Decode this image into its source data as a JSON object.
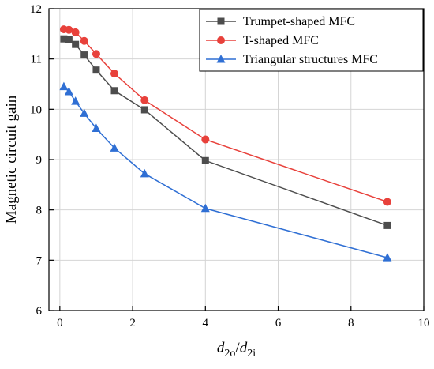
{
  "chart_data": {
    "type": "line",
    "xlabel": {
      "base": "d",
      "sub1": "2o",
      "sep": "/",
      "base2": "d",
      "sub2": "2i"
    },
    "ylabel": "Magnetic circuit gain",
    "xlim": [
      -0.3,
      10
    ],
    "ylim": [
      6,
      12
    ],
    "xticks": [
      0,
      2,
      4,
      6,
      8,
      10
    ],
    "yticks": [
      6,
      7,
      8,
      9,
      10,
      11,
      12
    ],
    "grid": true,
    "legend_position": "top-right",
    "series": [
      {
        "name": "Trumpet-shaped MFC",
        "color": "#4d4d4d",
        "marker": "square",
        "x": [
          0.11,
          0.25,
          0.43,
          0.67,
          1.0,
          1.5,
          2.33,
          4.0,
          9.0
        ],
        "y": [
          11.4,
          11.39,
          11.29,
          11.08,
          10.78,
          10.37,
          9.99,
          8.98,
          7.69
        ]
      },
      {
        "name": "T-shaped MFC",
        "color": "#e8413b",
        "marker": "circle",
        "x": [
          0.11,
          0.25,
          0.43,
          0.67,
          1.0,
          1.5,
          2.33,
          4.0,
          9.0
        ],
        "y": [
          11.59,
          11.58,
          11.53,
          11.36,
          11.1,
          10.71,
          10.18,
          9.4,
          8.16
        ]
      },
      {
        "name": "Triangular structures MFC",
        "color": "#2f6fd4",
        "marker": "triangle",
        "x": [
          0.11,
          0.25,
          0.43,
          0.67,
          1.0,
          1.5,
          2.33,
          4.0,
          9.0
        ],
        "y": [
          10.45,
          10.35,
          10.16,
          9.92,
          9.62,
          9.23,
          8.72,
          8.03,
          7.05
        ]
      }
    ]
  }
}
